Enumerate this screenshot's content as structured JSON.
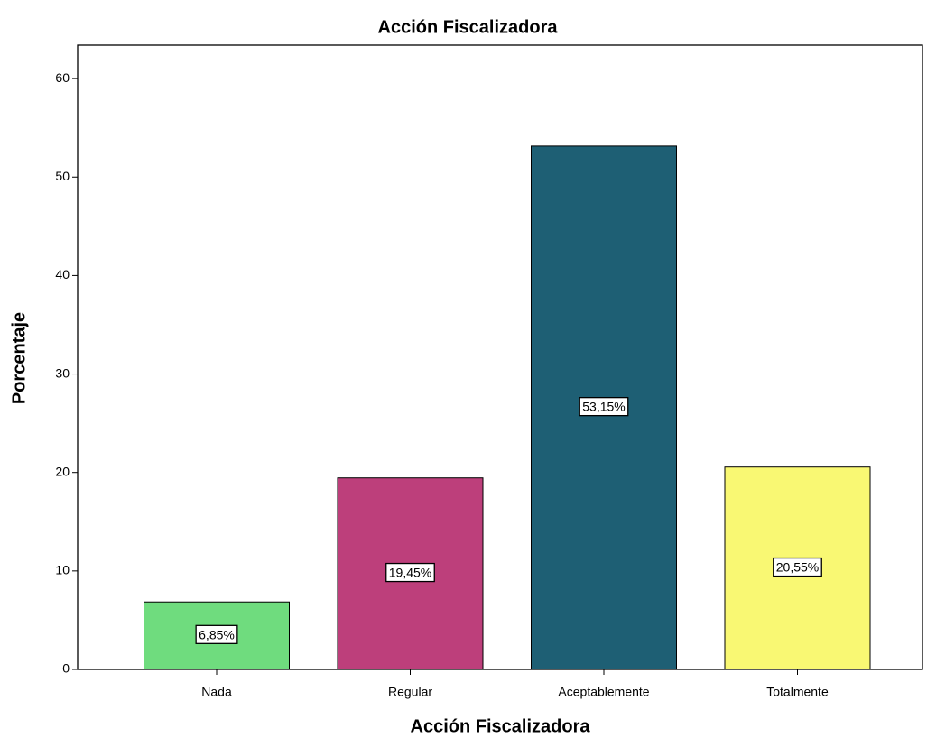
{
  "chart_data": {
    "type": "bar",
    "title": "Acción Fiscalizadora",
    "x_label": "Acción Fiscalizadora",
    "y_label": "Porcentaje",
    "categories": [
      "Nada",
      "Regular",
      "Aceptablemente",
      "Totalmente"
    ],
    "values": [
      6.85,
      19.45,
      53.15,
      20.55
    ],
    "value_labels": [
      "6,85%",
      "19,45%",
      "53,15%",
      "20,55%"
    ],
    "colors": [
      "#6fdc7e",
      "#bd3f7b",
      "#1e5f74",
      "#f9f873"
    ],
    "ylim": [
      0,
      63.4
    ],
    "yticks": [
      0,
      10,
      20,
      30,
      40,
      50,
      60
    ],
    "grid": false
  }
}
